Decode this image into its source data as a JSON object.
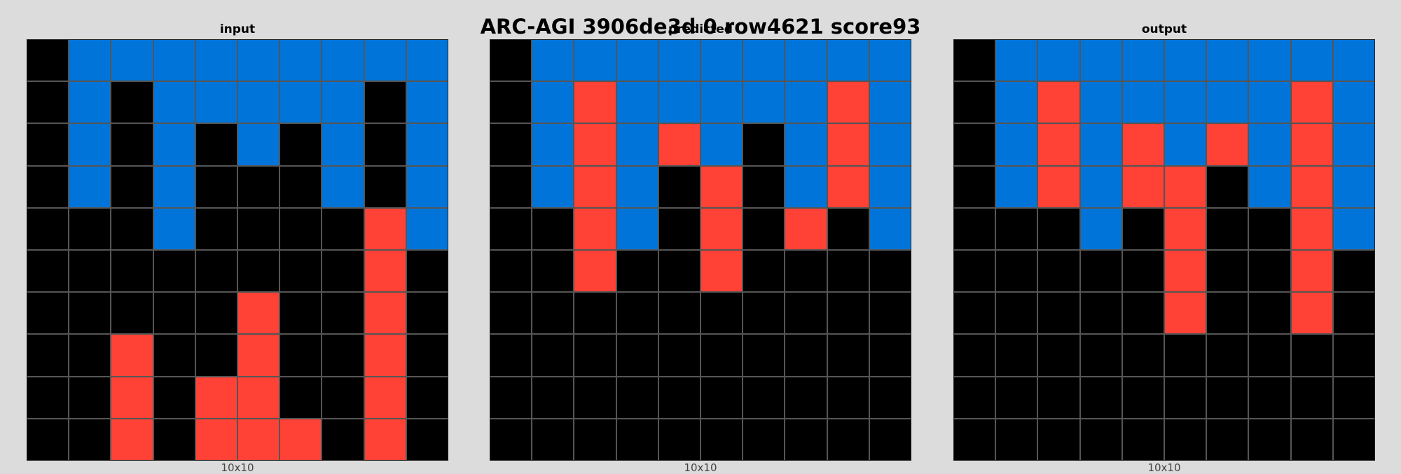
{
  "title": "ARC-AGI 3906de3d 0 row4621 score93",
  "palette": {
    "0": "#000000",
    "1": "#0074d9",
    "2": "#ff4136"
  },
  "panels": [
    {
      "label": "input",
      "dims": "10x10",
      "grid": [
        [
          0,
          1,
          1,
          1,
          1,
          1,
          1,
          1,
          1,
          1
        ],
        [
          0,
          1,
          0,
          1,
          1,
          1,
          1,
          1,
          0,
          1
        ],
        [
          0,
          1,
          0,
          1,
          0,
          1,
          0,
          1,
          0,
          1
        ],
        [
          0,
          1,
          0,
          1,
          0,
          0,
          0,
          1,
          0,
          1
        ],
        [
          0,
          0,
          0,
          1,
          0,
          0,
          0,
          0,
          2,
          1
        ],
        [
          0,
          0,
          0,
          0,
          0,
          0,
          0,
          0,
          2,
          0
        ],
        [
          0,
          0,
          0,
          0,
          0,
          2,
          0,
          0,
          2,
          0
        ],
        [
          0,
          0,
          2,
          0,
          0,
          2,
          0,
          0,
          2,
          0
        ],
        [
          0,
          0,
          2,
          0,
          2,
          2,
          0,
          0,
          2,
          0
        ],
        [
          0,
          0,
          2,
          0,
          2,
          2,
          2,
          0,
          2,
          0
        ]
      ]
    },
    {
      "label": "predicted",
      "dims": "10x10",
      "grid": [
        [
          0,
          1,
          1,
          1,
          1,
          1,
          1,
          1,
          1,
          1
        ],
        [
          0,
          1,
          2,
          1,
          1,
          1,
          1,
          1,
          2,
          1
        ],
        [
          0,
          1,
          2,
          1,
          2,
          1,
          0,
          1,
          2,
          1
        ],
        [
          0,
          1,
          2,
          1,
          0,
          2,
          0,
          1,
          2,
          1
        ],
        [
          0,
          0,
          2,
          1,
          0,
          2,
          0,
          2,
          0,
          1
        ],
        [
          0,
          0,
          2,
          0,
          0,
          2,
          0,
          0,
          0,
          0
        ],
        [
          0,
          0,
          0,
          0,
          0,
          0,
          0,
          0,
          0,
          0
        ],
        [
          0,
          0,
          0,
          0,
          0,
          0,
          0,
          0,
          0,
          0
        ],
        [
          0,
          0,
          0,
          0,
          0,
          0,
          0,
          0,
          0,
          0
        ],
        [
          0,
          0,
          0,
          0,
          0,
          0,
          0,
          0,
          0,
          0
        ]
      ]
    },
    {
      "label": "output",
      "dims": "10x10",
      "grid": [
        [
          0,
          1,
          1,
          1,
          1,
          1,
          1,
          1,
          1,
          1
        ],
        [
          0,
          1,
          2,
          1,
          1,
          1,
          1,
          1,
          2,
          1
        ],
        [
          0,
          1,
          2,
          1,
          2,
          1,
          2,
          1,
          2,
          1
        ],
        [
          0,
          1,
          2,
          1,
          2,
          2,
          0,
          1,
          2,
          1
        ],
        [
          0,
          0,
          0,
          1,
          0,
          2,
          0,
          0,
          2,
          1
        ],
        [
          0,
          0,
          0,
          0,
          0,
          2,
          0,
          0,
          2,
          0
        ],
        [
          0,
          0,
          0,
          0,
          0,
          2,
          0,
          0,
          2,
          0
        ],
        [
          0,
          0,
          0,
          0,
          0,
          0,
          0,
          0,
          0,
          0
        ],
        [
          0,
          0,
          0,
          0,
          0,
          0,
          0,
          0,
          0,
          0
        ],
        [
          0,
          0,
          0,
          0,
          0,
          0,
          0,
          0,
          0,
          0
        ]
      ]
    }
  ]
}
